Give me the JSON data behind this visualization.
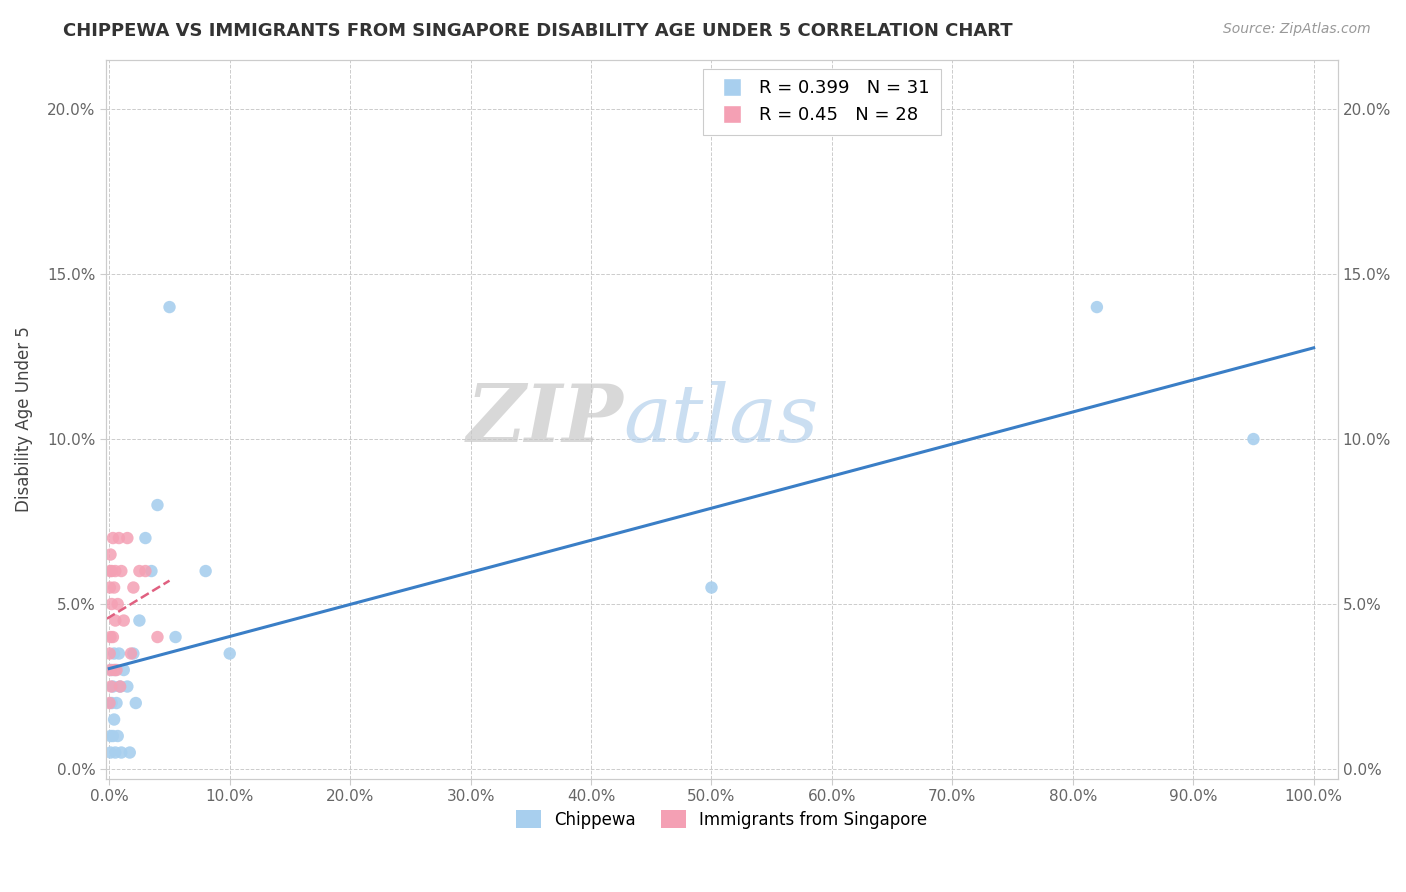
{
  "title": "CHIPPEWA VS IMMIGRANTS FROM SINGAPORE DISABILITY AGE UNDER 5 CORRELATION CHART",
  "source": "Source: ZipAtlas.com",
  "ylabel": "Disability Age Under 5",
  "legend_label1": "Chippewa",
  "legend_label2": "Immigrants from Singapore",
  "R1": 0.399,
  "N1": 31,
  "R2": 0.45,
  "N2": 28,
  "color1": "#A8CFEE",
  "color2": "#F4A0B4",
  "line_color1": "#3A7EC6",
  "line_color2": "#E06080",
  "xlim": [
    -0.003,
    1.02
  ],
  "ylim": [
    -0.003,
    0.215
  ],
  "chippewa_x": [
    0.001,
    0.001,
    0.002,
    0.002,
    0.003,
    0.003,
    0.004,
    0.004,
    0.005,
    0.005,
    0.006,
    0.007,
    0.008,
    0.009,
    0.01,
    0.012,
    0.015,
    0.017,
    0.02,
    0.022,
    0.025,
    0.03,
    0.035,
    0.04,
    0.05,
    0.055,
    0.08,
    0.1,
    0.5,
    0.82,
    0.95
  ],
  "chippewa_y": [
    0.005,
    0.01,
    0.02,
    0.03,
    0.01,
    0.025,
    0.035,
    0.015,
    0.03,
    0.005,
    0.02,
    0.01,
    0.035,
    0.025,
    0.005,
    0.03,
    0.025,
    0.005,
    0.035,
    0.02,
    0.045,
    0.07,
    0.06,
    0.08,
    0.14,
    0.04,
    0.06,
    0.035,
    0.055,
    0.14,
    0.1
  ],
  "singapore_x": [
    0.0002,
    0.0003,
    0.0005,
    0.0006,
    0.0008,
    0.001,
    0.001,
    0.0015,
    0.002,
    0.002,
    0.003,
    0.003,
    0.004,
    0.004,
    0.005,
    0.005,
    0.006,
    0.007,
    0.008,
    0.009,
    0.01,
    0.012,
    0.015,
    0.018,
    0.02,
    0.025,
    0.03,
    0.04
  ],
  "singapore_y": [
    0.02,
    0.035,
    0.055,
    0.06,
    0.03,
    0.04,
    0.065,
    0.025,
    0.05,
    0.06,
    0.07,
    0.04,
    0.055,
    0.03,
    0.045,
    0.06,
    0.03,
    0.05,
    0.07,
    0.025,
    0.06,
    0.045,
    0.07,
    0.035,
    0.055,
    0.06,
    0.06,
    0.04
  ],
  "xticks": [
    0.0,
    0.1,
    0.2,
    0.3,
    0.4,
    0.5,
    0.6,
    0.7,
    0.8,
    0.9,
    1.0
  ],
  "xtick_labels": [
    "0.0%",
    "10.0%",
    "20.0%",
    "30.0%",
    "40.0%",
    "50.0%",
    "60.0%",
    "70.0%",
    "80.0%",
    "90.0%",
    "100.0%"
  ],
  "yticks": [
    0.0,
    0.05,
    0.1,
    0.15,
    0.2
  ],
  "ytick_labels": [
    "0.0%",
    "5.0%",
    "10.0%",
    "15.0%",
    "20.0%"
  ]
}
